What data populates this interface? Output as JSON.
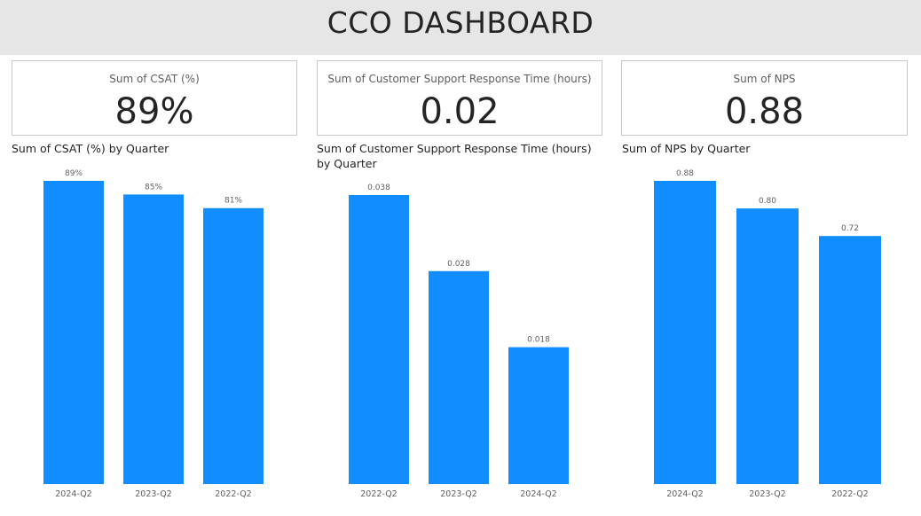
{
  "header": {
    "title": "CCO DASHBOARD"
  },
  "cards": [
    {
      "label": "Sum of CSAT (%)",
      "value": "89%"
    },
    {
      "label": "Sum of Customer Support Response Time (hours)",
      "value": "0.02"
    },
    {
      "label": "Sum of NPS",
      "value": "0.88"
    }
  ],
  "colors": {
    "bar": "#118dff",
    "header_bg": "#e6e6e6"
  },
  "chart_data": [
    {
      "type": "bar",
      "title": "Sum of CSAT (%) by Quarter",
      "categories": [
        "2024-Q2",
        "2023-Q2",
        "2022-Q2"
      ],
      "values": [
        89,
        85,
        81
      ],
      "data_labels": [
        "89%",
        "85%",
        "81%"
      ],
      "ylim": [
        0,
        89
      ],
      "grid": false
    },
    {
      "type": "bar",
      "title": "Sum of Customer Support Response Time (hours) by Quarter",
      "categories": [
        "2022-Q2",
        "2023-Q2",
        "2024-Q2"
      ],
      "values": [
        0.038,
        0.028,
        0.018
      ],
      "data_labels": [
        "0.038",
        "0.028",
        "0.018"
      ],
      "ylim": [
        0,
        0.038
      ],
      "grid": false
    },
    {
      "type": "bar",
      "title": "Sum of NPS by Quarter",
      "categories": [
        "2024-Q2",
        "2023-Q2",
        "2022-Q2"
      ],
      "values": [
        0.88,
        0.8,
        0.72
      ],
      "data_labels": [
        "0.88",
        "0.80",
        "0.72"
      ],
      "ylim": [
        0,
        0.88
      ],
      "grid": false
    }
  ]
}
